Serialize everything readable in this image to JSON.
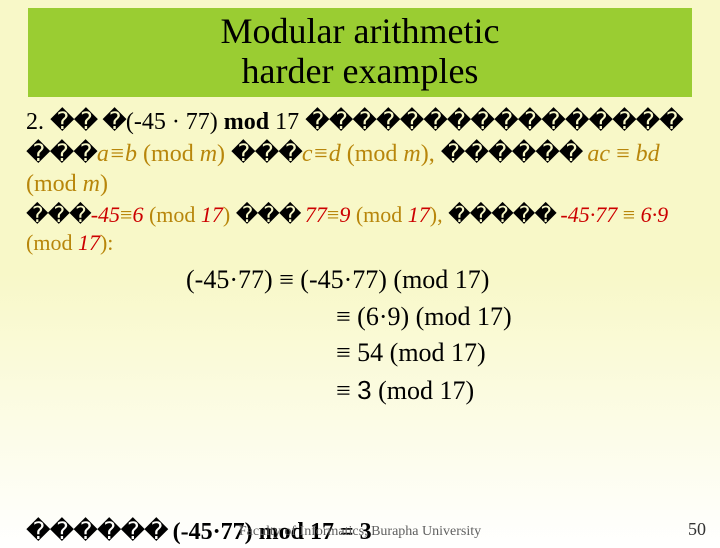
{
  "title": {
    "line1": "Modular arithmetic",
    "line2": "harder examples"
  },
  "box": {
    "background": "#9acd32",
    "font_size_pt": 36
  },
  "body_font_size_pt": 24,
  "colors": {
    "gold": "#b8860b",
    "red": "#cc0000",
    "text": "#000000",
    "bg_top": "#f8f8c8",
    "bg_bottom": "#ffffff"
  },
  "line1": {
    "num": "2.",
    "rep1": "�� �",
    "expr": "(-45 · 77) ",
    "mod": "mod",
    "tail": " 17 ",
    "rep2": "����������������"
  },
  "line2": {
    "rep1": "���",
    "ab": "a≡b",
    "mid1": " (mod ",
    "m1": "m",
    "close1": ") ",
    "rep2": "���",
    "cd": "c≡d",
    "mid2": " (mod ",
    "m2": "m",
    "close2": "), ",
    "rep3": "������ ",
    "ac": "ac",
    "eq": " ≡ ",
    "bd": "bd",
    "tail": " (mod ",
    "m3": "m",
    "close3": ")"
  },
  "line3": {
    "rep1": "���",
    "a": "-45",
    "eq1": "≡",
    "b": "6",
    "mid1": " (mod ",
    "m1": "17",
    "close1": ") ",
    "rep2": "��� ",
    "c": "77",
    "eq2": "≡",
    "d": "9",
    "mid2": " (mod ",
    "m2": "17",
    "close2": "), ",
    "rep3": "����� ",
    "ac": "-45·77",
    "eq3": " ≡ ",
    "bd": "6·9",
    "tail": " (mod ",
    "m3": "17",
    "close3": "):"
  },
  "eq": {
    "l1": "(-45·77) ≡ (-45·77) (mod 17)",
    "l2": "≡ (6·9) (mod 17)",
    "l3": "≡ 54 (mod 17)",
    "l4a": "≡ ",
    "l4b": "3",
    "l4c": " (mod 17)"
  },
  "bottom": {
    "rep": "������ ",
    "expr": "(-45·77) ",
    "mod": "mod",
    "rest": " 17 = 3"
  },
  "footer": "Faculty of Informatics, Burapha University",
  "page": "50"
}
